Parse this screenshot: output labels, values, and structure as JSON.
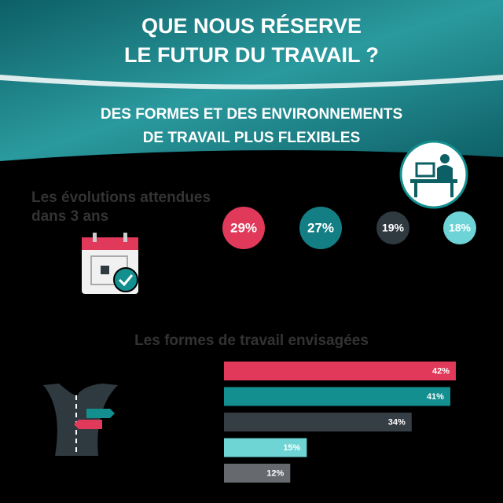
{
  "header": {
    "title_lines": [
      "QUE NOUS RÉSERVE",
      "LE FUTUR DU TRAVAIL ?"
    ],
    "subtitle_lines": [
      "DES FORMES ET DES ENVIRONNEMENTS",
      "DE TRAVAIL PLUS FLEXIBLES"
    ]
  },
  "evolutions": {
    "title_lines": [
      "Les évolutions attendues",
      "dans 3 ans"
    ],
    "values": [
      29,
      27,
      19,
      18
    ],
    "value_labels": [
      "29%",
      "27%",
      "19%",
      "18%"
    ],
    "colors": [
      "#e0395a",
      "#137f85",
      "#2f3940",
      "#6dd3d6"
    ]
  },
  "chart_data": {
    "type": "bar",
    "orientation": "horizontal",
    "title": "Les formes de travail envisagées",
    "values": [
      42,
      41,
      34,
      15,
      12
    ],
    "value_labels": [
      "42%",
      "41%",
      "34%",
      "15%",
      "12%"
    ],
    "colors": [
      "#e0395a",
      "#138f8f",
      "#353d45",
      "#6fd4d4",
      "#666a6e"
    ]
  }
}
